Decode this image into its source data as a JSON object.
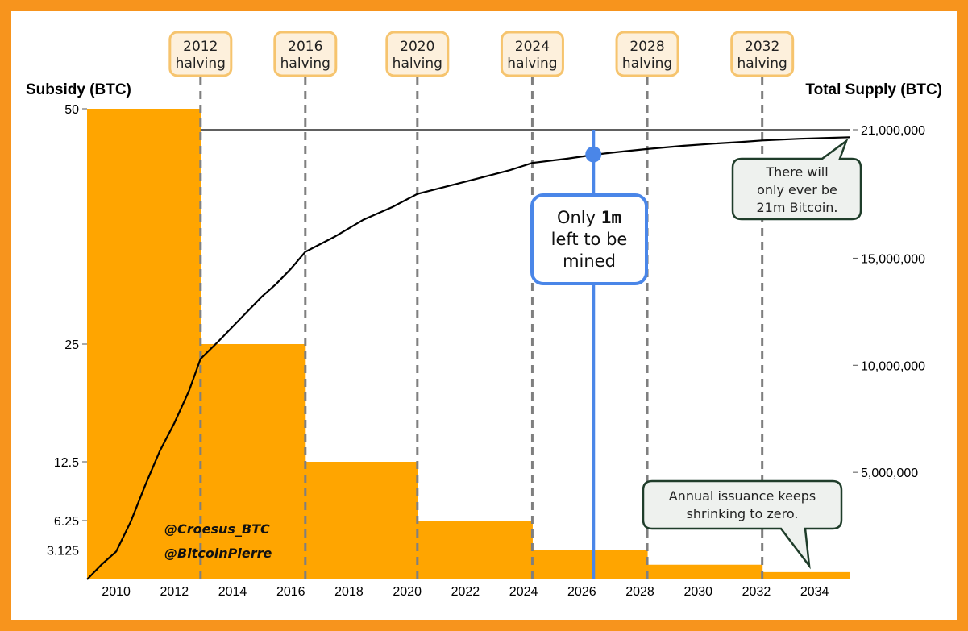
{
  "chart_data": {
    "type": "bar",
    "left_axis_title": "Subsidy (BTC)",
    "right_axis_title": "Total Supply (BTC)",
    "x_ticks": [
      "2010",
      "2012",
      "2014",
      "2016",
      "2018",
      "2020",
      "2022",
      "2024",
      "2026",
      "2028",
      "2030",
      "2032",
      "2034"
    ],
    "left_ticks": [
      "50",
      "25",
      "12.5",
      "6.25",
      "3.125"
    ],
    "right_ticks": [
      "21,000,000",
      "15,000,000",
      "10,000,000",
      "5,000,000"
    ],
    "xlim": [
      2009.0,
      2035.2
    ],
    "subsidy": [
      {
        "start": 2009.0,
        "end": 2012.9,
        "value": 50
      },
      {
        "start": 2012.9,
        "end": 2016.5,
        "value": 25
      },
      {
        "start": 2016.5,
        "end": 2020.35,
        "value": 12.5
      },
      {
        "start": 2020.35,
        "end": 2024.3,
        "value": 6.25
      },
      {
        "start": 2024.3,
        "end": 2028.25,
        "value": 3.125
      },
      {
        "start": 2028.25,
        "end": 2032.2,
        "value": 1.5625
      },
      {
        "start": 2032.2,
        "end": 2035.2,
        "value": 0.78125
      }
    ],
    "total_supply": {
      "x": [
        2009.0,
        2009.5,
        2010.0,
        2010.5,
        2011.0,
        2011.5,
        2012.0,
        2012.5,
        2012.9,
        2013.5,
        2014.0,
        2014.5,
        2015.0,
        2015.5,
        2016.0,
        2016.5,
        2017.5,
        2018.5,
        2019.5,
        2020.35,
        2021.5,
        2022.5,
        2023.5,
        2024.3,
        2025.5,
        2026.5,
        2027.5,
        2028.25,
        2029.5,
        2030.5,
        2031.5,
        2032.2,
        2033.5,
        2035.2
      ],
      "y": [
        0,
        700000,
        1300000,
        2700000,
        4400000,
        6000000,
        7300000,
        8800000,
        10300000,
        11100000,
        11800000,
        12500000,
        13200000,
        13800000,
        14500000,
        15300000,
        16000000,
        16800000,
        17400000,
        18000000,
        18400000,
        18750000,
        19100000,
        19450000,
        19650000,
        19850000,
        20000000,
        20100000,
        20250000,
        20350000,
        20430000,
        20500000,
        20580000,
        20650000
      ]
    },
    "halvings": [
      {
        "x": 2012.9,
        "label_line1": "2012",
        "label_line2": "halving"
      },
      {
        "x": 2016.5,
        "label_line1": "2016",
        "label_line2": "halving"
      },
      {
        "x": 2020.35,
        "label_line1": "2020",
        "label_line2": "halving"
      },
      {
        "x": 2024.3,
        "label_line1": "2024",
        "label_line2": "halving"
      },
      {
        "x": 2028.25,
        "label_line1": "2028",
        "label_line2": "halving"
      },
      {
        "x": 2032.2,
        "label_line1": "2032",
        "label_line2": "halving"
      }
    ],
    "max_supply": 21000000,
    "current_marker": {
      "x": 2026.4,
      "y": 19850000
    },
    "colors": {
      "subsidy_fill": "#ffa500",
      "supply_line": "#000000",
      "halving_line": "#7f7f7f",
      "marker": "#4a86e8",
      "badge_border": "#f6c46e",
      "badge_fill": "#fdf0dc",
      "callout_border": "#1f3d2a",
      "callout_fill": "#eef1ee",
      "frame": "#f7941d"
    }
  },
  "callouts": {
    "mined_line1_a": "Only ",
    "mined_line1_b": "1m",
    "mined_line2": "left to be",
    "mined_line3": "mined",
    "cap_line1": "There will",
    "cap_line2": "only ever be",
    "cap_line3": "21m Bitcoin.",
    "issuance_line1": "Annual issuance keeps",
    "issuance_line2": "shrinking to zero."
  },
  "credits": {
    "handle1": "@Croesus_BTC",
    "handle2": "@BitcoinPierre"
  }
}
